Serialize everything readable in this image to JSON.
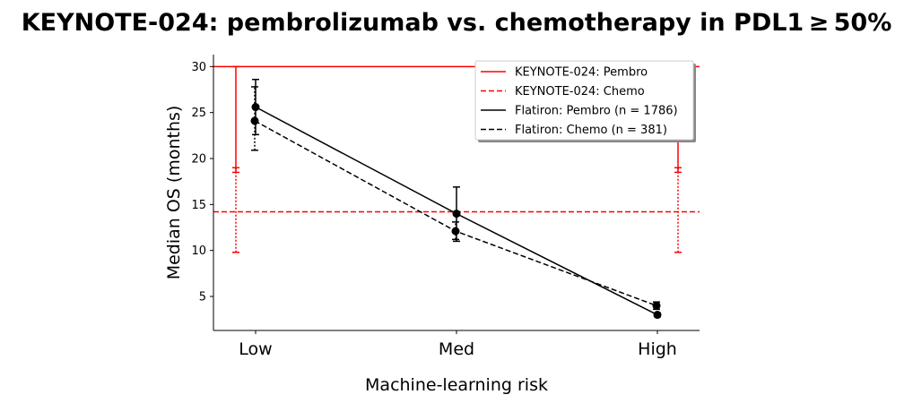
{
  "chart_data": {
    "type": "line",
    "title": "KEYNOTE-024: pembrolizumab vs. chemotherapy in PDL1 ≥ 50%",
    "xlabel": "Machine-learning risk",
    "ylabel": "Median OS (months)",
    "categories": [
      "Low",
      "Med",
      "High"
    ],
    "ylim": [
      1.3,
      31.3
    ],
    "yticks": [
      5,
      10,
      15,
      20,
      25,
      30
    ],
    "grid": false,
    "legend_position": "upper-right",
    "reference_lines": [
      {
        "name": "KEYNOTE-024: Pembro",
        "y": 30.0,
        "style": "solid",
        "color": "#ff0000",
        "ci_low": 18.5
      },
      {
        "name": "KEYNOTE-024: Chemo",
        "y": 14.2,
        "style": "dashed",
        "color": "#ff0000",
        "ci_low": 9.8,
        "ci_high": 19.0
      }
    ],
    "series": [
      {
        "name": "Flatiron: Pembro (n = 1786)",
        "style": "solid",
        "color": "#000000",
        "values": [
          25.6,
          14.0,
          3.0
        ],
        "ci_low": [
          22.6,
          11.0,
          2.8
        ],
        "ci_high": [
          28.6,
          16.9,
          3.2
        ]
      },
      {
        "name": "Flatiron: Chemo (n = 381)",
        "style": "dashed",
        "color": "#000000",
        "values": [
          24.1,
          12.1,
          4.0
        ],
        "ci_low": [
          20.9,
          11.2,
          3.6
        ],
        "ci_high": [
          27.8,
          13.1,
          4.4
        ]
      }
    ]
  }
}
